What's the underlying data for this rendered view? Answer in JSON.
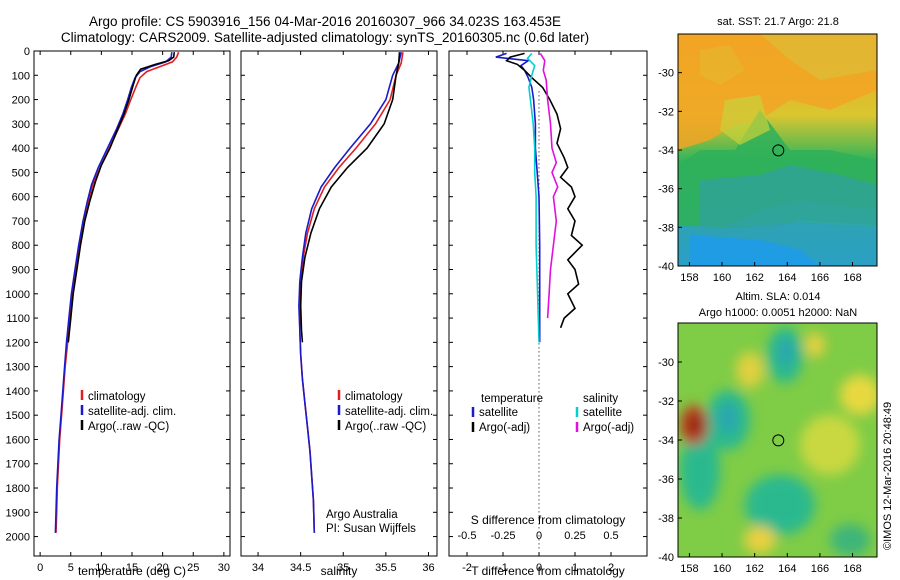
{
  "header": {
    "line1": "Argo profile: CS 5903916_156 04-Mar-2016 20160307_966 34.023S 163.453E",
    "line2": "Climatology: CARS2009. Satellite-adjusted climatology: synTS_20160305.nc (0.6d later)"
  },
  "colors": {
    "climatology": "#e02020",
    "satellite": "#1a1acc",
    "argo": "#000000",
    "sal_satellite": "#00d0d0",
    "sal_argo": "#e010e0"
  },
  "chart_data": [
    {
      "type": "line",
      "id": "temperature",
      "xlabel": "temperature (deg C)",
      "xlim": [
        -1,
        31
      ],
      "xticks": [
        0,
        5,
        10,
        15,
        20,
        25,
        30
      ],
      "ylim": [
        0,
        2080
      ],
      "yticks": [
        0,
        100,
        200,
        300,
        400,
        500,
        600,
        700,
        800,
        900,
        1000,
        1100,
        1200,
        1300,
        1400,
        1500,
        1600,
        1700,
        1800,
        1900,
        2000
      ],
      "legend": [
        "climatology",
        "satellite-adj. clim.",
        "Argo(..raw -QC)"
      ],
      "series": [
        {
          "name": "climatology",
          "color_key": "climatology",
          "points": [
            [
              22.6,
              5
            ],
            [
              22.3,
              25
            ],
            [
              21.6,
              45
            ],
            [
              19.5,
              65
            ],
            [
              17.4,
              85
            ],
            [
              16.3,
              110
            ],
            [
              15.6,
              150
            ],
            [
              14.8,
              200
            ],
            [
              13.9,
              260
            ],
            [
              12.8,
              320
            ],
            [
              11.3,
              400
            ],
            [
              9.8,
              480
            ],
            [
              8.6,
              550
            ],
            [
              7.9,
              620
            ],
            [
              7.2,
              700
            ],
            [
              6.5,
              800
            ],
            [
              5.9,
              900
            ],
            [
              5.3,
              1000
            ],
            [
              4.9,
              1100
            ],
            [
              4.5,
              1200
            ],
            [
              4.1,
              1300
            ],
            [
              3.8,
              1400
            ],
            [
              3.5,
              1500
            ],
            [
              3.2,
              1600
            ],
            [
              3.0,
              1700
            ],
            [
              2.8,
              1800
            ],
            [
              2.7,
              1900
            ],
            [
              2.6,
              1985
            ]
          ]
        },
        {
          "name": "satellite-adj. clim.",
          "color_key": "satellite",
          "points": [
            [
              21.5,
              5
            ],
            [
              21.4,
              25
            ],
            [
              20.5,
              45
            ],
            [
              18.0,
              65
            ],
            [
              16.3,
              85
            ],
            [
              15.5,
              110
            ],
            [
              14.9,
              150
            ],
            [
              14.3,
              200
            ],
            [
              13.5,
              260
            ],
            [
              12.5,
              320
            ],
            [
              11.0,
              400
            ],
            [
              9.5,
              480
            ],
            [
              8.4,
              550
            ],
            [
              7.7,
              620
            ],
            [
              7.0,
              700
            ],
            [
              6.3,
              800
            ],
            [
              5.7,
              900
            ],
            [
              5.1,
              1000
            ],
            [
              4.7,
              1100
            ],
            [
              4.3,
              1200
            ],
            [
              4.0,
              1300
            ],
            [
              3.7,
              1400
            ],
            [
              3.4,
              1500
            ],
            [
              3.1,
              1600
            ],
            [
              2.9,
              1700
            ],
            [
              2.7,
              1800
            ],
            [
              2.6,
              1900
            ],
            [
              2.5,
              1985
            ]
          ]
        },
        {
          "name": "Argo(..raw -QC)",
          "color_key": "argo",
          "points": [
            [
              21.9,
              5
            ],
            [
              21.8,
              25
            ],
            [
              21.0,
              40
            ],
            [
              18.8,
              55
            ],
            [
              16.4,
              75
            ],
            [
              15.7,
              100
            ],
            [
              15.2,
              140
            ],
            [
              14.5,
              200
            ],
            [
              13.7,
              260
            ],
            [
              12.7,
              320
            ],
            [
              11.4,
              400
            ],
            [
              10.0,
              470
            ],
            [
              9.0,
              540
            ],
            [
              8.1,
              620
            ],
            [
              7.3,
              700
            ],
            [
              6.6,
              800
            ],
            [
              6.0,
              900
            ],
            [
              5.4,
              1000
            ],
            [
              5.0,
              1100
            ],
            [
              4.6,
              1200
            ]
          ]
        }
      ]
    },
    {
      "type": "line",
      "id": "salinity",
      "xlabel": "salinity",
      "xlim": [
        33.8,
        36.1
      ],
      "xticks": [
        34,
        34.5,
        35,
        35.5,
        36
      ],
      "ylim": [
        0,
        2080
      ],
      "legend": [
        "climatology",
        "satellite-adj. clim.",
        "Argo(..raw -QC)"
      ],
      "annotation": [
        "Argo Australia",
        "PI: Susan Wijffels"
      ],
      "series": [
        {
          "name": "climatology",
          "color_key": "climatology",
          "points": [
            [
              35.7,
              5
            ],
            [
              35.68,
              50
            ],
            [
              35.62,
              100
            ],
            [
              35.55,
              200
            ],
            [
              35.38,
              300
            ],
            [
              35.15,
              400
            ],
            [
              34.95,
              480
            ],
            [
              34.78,
              560
            ],
            [
              34.66,
              650
            ],
            [
              34.58,
              750
            ],
            [
              34.53,
              850
            ],
            [
              34.5,
              950
            ],
            [
              34.49,
              1050
            ],
            [
              34.49,
              1150
            ],
            [
              34.5,
              1250
            ],
            [
              34.52,
              1350
            ],
            [
              34.55,
              1450
            ],
            [
              34.58,
              1550
            ],
            [
              34.61,
              1650
            ],
            [
              34.63,
              1750
            ],
            [
              34.65,
              1850
            ],
            [
              34.66,
              1985
            ]
          ]
        },
        {
          "name": "satellite-adj. clim.",
          "color_key": "satellite",
          "points": [
            [
              35.68,
              5
            ],
            [
              35.65,
              50
            ],
            [
              35.58,
              100
            ],
            [
              35.5,
              200
            ],
            [
              35.32,
              300
            ],
            [
              35.08,
              400
            ],
            [
              34.9,
              480
            ],
            [
              34.74,
              560
            ],
            [
              34.63,
              650
            ],
            [
              34.56,
              750
            ],
            [
              34.52,
              850
            ],
            [
              34.49,
              950
            ],
            [
              34.48,
              1050
            ],
            [
              34.49,
              1150
            ],
            [
              34.5,
              1250
            ],
            [
              34.52,
              1350
            ],
            [
              34.55,
              1450
            ],
            [
              34.58,
              1550
            ],
            [
              34.61,
              1650
            ],
            [
              34.63,
              1750
            ],
            [
              34.65,
              1850
            ],
            [
              34.66,
              1985
            ]
          ]
        },
        {
          "name": "Argo(..raw -QC)",
          "color_key": "argo",
          "points": [
            [
              35.66,
              5
            ],
            [
              35.65,
              50
            ],
            [
              35.62,
              100
            ],
            [
              35.58,
              200
            ],
            [
              35.48,
              300
            ],
            [
              35.28,
              400
            ],
            [
              35.05,
              480
            ],
            [
              34.86,
              560
            ],
            [
              34.72,
              650
            ],
            [
              34.62,
              750
            ],
            [
              34.55,
              850
            ],
            [
              34.51,
              950
            ],
            [
              34.5,
              1050
            ],
            [
              34.51,
              1150
            ],
            [
              34.52,
              1200
            ]
          ]
        }
      ]
    },
    {
      "type": "line",
      "id": "differences",
      "xlabel": "T difference from climatology",
      "x2label": "S difference from climatology",
      "xlim": [
        -2.5,
        3
      ],
      "xticks": [
        -2,
        -1,
        0,
        1,
        2
      ],
      "x2ticks": [
        "-0.5",
        "-0.25",
        "0",
        "0.25",
        "0.5"
      ],
      "ylim": [
        0,
        2080
      ],
      "legend_titles": [
        "temperature",
        "salinity"
      ],
      "legend": [
        "satellite",
        "Argo(-adj)",
        "satellite",
        "Argo(-adj)"
      ],
      "series": [
        {
          "name": "satellite",
          "color_key": "satellite",
          "points": [
            [
              -0.9,
              10
            ],
            [
              -1.2,
              25
            ],
            [
              -0.3,
              40
            ],
            [
              -0.5,
              60
            ],
            [
              -0.4,
              80
            ],
            [
              -0.3,
              110
            ],
            [
              -0.2,
              150
            ],
            [
              -0.15,
              200
            ],
            [
              -0.1,
              300
            ],
            [
              -0.1,
              400
            ],
            [
              -0.05,
              500
            ],
            [
              0,
              600
            ],
            [
              0.02,
              800
            ],
            [
              0.02,
              1000
            ],
            [
              0.02,
              1200
            ]
          ]
        },
        {
          "name": "Argo(-adj)",
          "color_key": "argo",
          "points": [
            [
              -0.4,
              10
            ],
            [
              -0.8,
              25
            ],
            [
              -0.9,
              40
            ],
            [
              -0.6,
              55
            ],
            [
              -0.4,
              80
            ],
            [
              -0.2,
              110
            ],
            [
              0.1,
              150
            ],
            [
              0.3,
              200
            ],
            [
              0.5,
              260
            ],
            [
              0.6,
              320
            ],
            [
              0.5,
              380
            ],
            [
              0.7,
              440
            ],
            [
              0.8,
              480
            ],
            [
              0.6,
              520
            ],
            [
              0.9,
              560
            ],
            [
              1.0,
              600
            ],
            [
              0.8,
              650
            ],
            [
              1.0,
              700
            ],
            [
              0.9,
              760
            ],
            [
              1.2,
              800
            ],
            [
              0.8,
              860
            ],
            [
              1.0,
              900
            ],
            [
              1.1,
              960
            ],
            [
              0.8,
              1000
            ],
            [
              1.0,
              1060
            ],
            [
              0.7,
              1100
            ],
            [
              0.6,
              1140
            ]
          ]
        },
        {
          "name": "satellite",
          "color_key": "sal_satellite",
          "points": [
            [
              -0.05,
              10
            ],
            [
              -0.08,
              30
            ],
            [
              -0.03,
              60
            ],
            [
              -0.05,
              100
            ],
            [
              -0.07,
              150
            ],
            [
              -0.06,
              200
            ],
            [
              -0.04,
              300
            ],
            [
              -0.03,
              400
            ],
            [
              -0.03,
              500
            ],
            [
              -0.02,
              600
            ],
            [
              -0.02,
              800
            ],
            [
              -0.01,
              1000
            ],
            [
              0,
              1200
            ]
          ]
        },
        {
          "name": "Argo(-adj)",
          "color_key": "sal_argo",
          "points": [
            [
              0.01,
              10
            ],
            [
              0.04,
              40
            ],
            [
              0.03,
              80
            ],
            [
              0.05,
              120
            ],
            [
              0.06,
              200
            ],
            [
              0.08,
              300
            ],
            [
              0.09,
              400
            ],
            [
              0.12,
              460
            ],
            [
              0.09,
              500
            ],
            [
              0.13,
              560
            ],
            [
              0.1,
              600
            ],
            [
              0.12,
              700
            ],
            [
              0.1,
              800
            ],
            [
              0.08,
              900
            ],
            [
              0.07,
              1000
            ],
            [
              0.06,
              1100
            ]
          ]
        }
      ]
    }
  ],
  "maps": {
    "sst": {
      "title": "sat. SST: 21.7 Argo: 21.8",
      "ylim": [
        -40,
        -28
      ],
      "xlim": [
        157.3,
        169.5
      ],
      "yticks": [
        -30,
        -32,
        -34,
        -36,
        -38,
        -40
      ],
      "xticks": [
        158,
        160,
        162,
        164,
        166,
        168
      ],
      "marker": [
        163.45,
        -34.02
      ]
    },
    "sla": {
      "title1": "Altim. SLA: 0.014",
      "title2": "Argo h1000: 0.0051 h2000: NaN",
      "ylim": [
        -40,
        -28
      ],
      "xlim": [
        157.3,
        169.5
      ],
      "yticks": [
        -30,
        -32,
        -34,
        -36,
        -38,
        -40
      ],
      "xticks": [
        158,
        160,
        162,
        164,
        166,
        168
      ],
      "marker": [
        163.45,
        -34.02
      ]
    }
  },
  "footer": "©IMOS 12-Mar-2016 20:48:49"
}
